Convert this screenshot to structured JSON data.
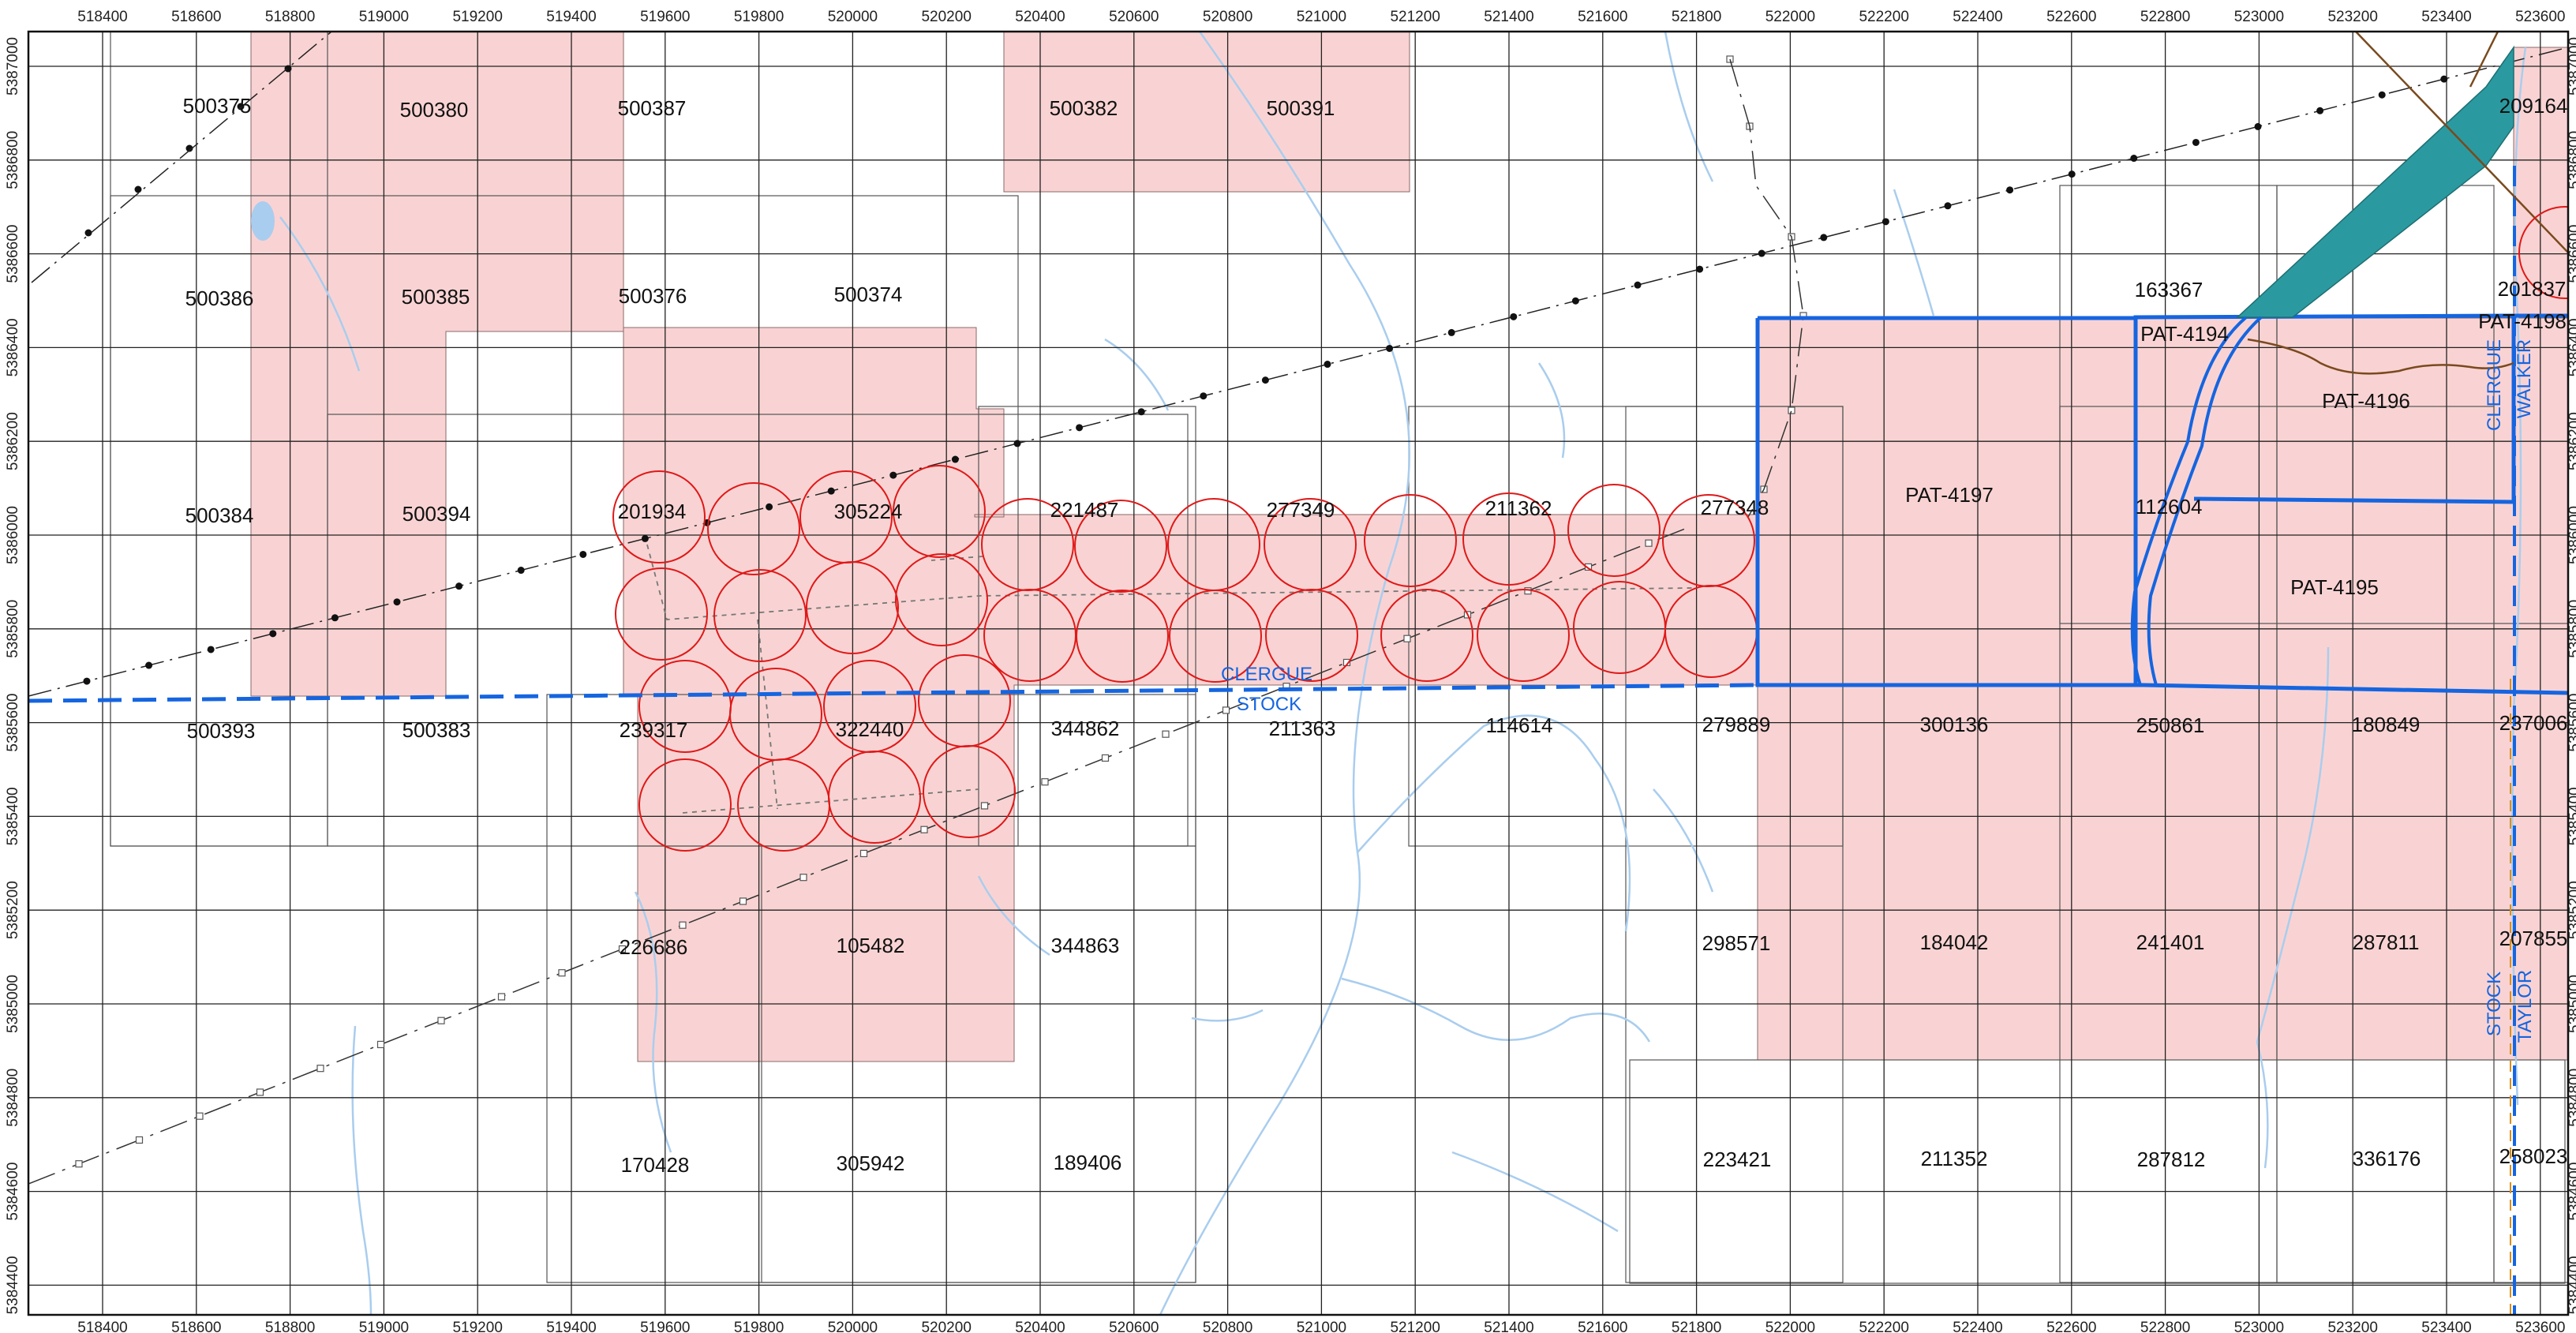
{
  "map": {
    "x_ticks": [
      "518400",
      "518600",
      "518800",
      "519000",
      "519200",
      "519400",
      "519600",
      "519800",
      "520000",
      "520200",
      "520400",
      "520600",
      "520800",
      "521000",
      "521200",
      "521400",
      "521600",
      "521800",
      "522000",
      "522200",
      "522400",
      "522600",
      "522800",
      "523000",
      "523200",
      "523400",
      "523600"
    ],
    "y_ticks": [
      "5387000",
      "5386800",
      "5386600",
      "5386400",
      "5386200",
      "5386000",
      "5385800",
      "5385600",
      "5385400",
      "5385200",
      "5385000",
      "5384800",
      "5384600",
      "5384400"
    ],
    "claim_labels": [
      {
        "id": "c1",
        "text": "500375"
      },
      {
        "id": "c2",
        "text": "500380"
      },
      {
        "id": "c3",
        "text": "500387"
      },
      {
        "id": "c4",
        "text": "500382"
      },
      {
        "id": "c5",
        "text": "500391"
      },
      {
        "id": "c6",
        "text": "209164"
      },
      {
        "id": "c7",
        "text": "500386"
      },
      {
        "id": "c8",
        "text": "500385"
      },
      {
        "id": "c9",
        "text": "500376"
      },
      {
        "id": "c10",
        "text": "500374"
      },
      {
        "id": "c11",
        "text": "163367"
      },
      {
        "id": "c12",
        "text": "201837"
      },
      {
        "id": "c13",
        "text": "PAT-4194"
      },
      {
        "id": "c14",
        "text": "PAT-4198"
      },
      {
        "id": "c15",
        "text": "PAT-4196"
      },
      {
        "id": "c16",
        "text": "PAT-4197"
      },
      {
        "id": "c17",
        "text": "500384"
      },
      {
        "id": "c18",
        "text": "500394"
      },
      {
        "id": "c19",
        "text": "201934"
      },
      {
        "id": "c20",
        "text": "305224"
      },
      {
        "id": "c21",
        "text": "221487"
      },
      {
        "id": "c22",
        "text": "277349"
      },
      {
        "id": "c23",
        "text": "211362"
      },
      {
        "id": "c24",
        "text": "277348"
      },
      {
        "id": "c25",
        "text": "112604"
      },
      {
        "id": "c26",
        "text": "PAT-4195"
      },
      {
        "id": "c27",
        "text": "500393"
      },
      {
        "id": "c28",
        "text": "500383"
      },
      {
        "id": "c29",
        "text": "239317"
      },
      {
        "id": "c30",
        "text": "322440"
      },
      {
        "id": "c31",
        "text": "344862"
      },
      {
        "id": "c32",
        "text": "211363"
      },
      {
        "id": "c33",
        "text": "114614"
      },
      {
        "id": "c34",
        "text": "279889"
      },
      {
        "id": "c35",
        "text": "300136"
      },
      {
        "id": "c36",
        "text": "250861"
      },
      {
        "id": "c37",
        "text": "180849"
      },
      {
        "id": "c38",
        "text": "237006"
      },
      {
        "id": "c39",
        "text": "226686"
      },
      {
        "id": "c40",
        "text": "105482"
      },
      {
        "id": "c41",
        "text": "344863"
      },
      {
        "id": "c42",
        "text": "298571"
      },
      {
        "id": "c43",
        "text": "184042"
      },
      {
        "id": "c44",
        "text": "241401"
      },
      {
        "id": "c45",
        "text": "287811"
      },
      {
        "id": "c46",
        "text": "207855"
      },
      {
        "id": "c47",
        "text": "170428"
      },
      {
        "id": "c48",
        "text": "305942"
      },
      {
        "id": "c49",
        "text": "189406"
      },
      {
        "id": "c50",
        "text": "223421"
      },
      {
        "id": "c51",
        "text": "211352"
      },
      {
        "id": "c52",
        "text": "287812"
      },
      {
        "id": "c53",
        "text": "336176"
      },
      {
        "id": "c54",
        "text": "258023"
      }
    ],
    "boundary_labels": {
      "clergue_south": "CLERGUE",
      "stock_south": "STOCK",
      "clergue_east": "CLERGUE",
      "walker": "WALKER",
      "stock_east": "STOCK",
      "taylor": "TAYLOR"
    },
    "colors": {
      "claim_fill": "#f9d3d3",
      "boundary_blue": "#1565e0",
      "circle_red": "#e01818",
      "water": "#a9cdee",
      "teal": "#2a9aa0",
      "road_brown": "#7a4a1e"
    }
  }
}
